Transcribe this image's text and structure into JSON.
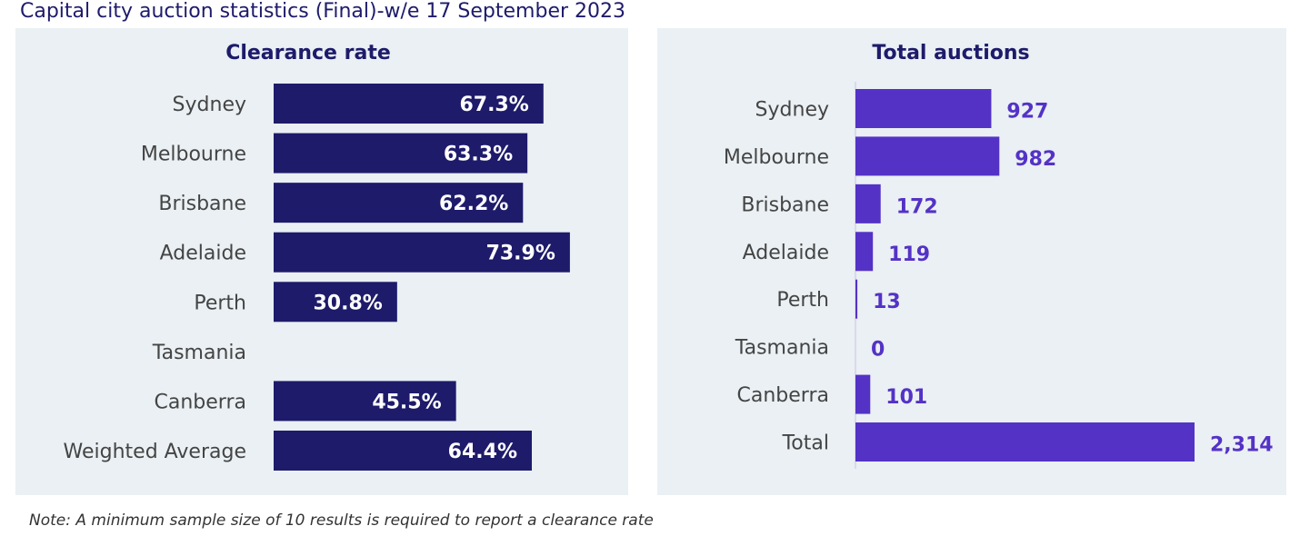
{
  "title": "Capital city auction statistics (Final)-w/e 17 September 2023",
  "note": "Note: A minimum sample size of 10 results is required to report a clearance rate",
  "colors": {
    "clearance_bar": "#1e1b6b",
    "auctions_bar": "#5432c6",
    "panel_bg": "#eaf0f3",
    "title_text": "#1e1b6b"
  },
  "chart_data": [
    {
      "type": "bar",
      "orientation": "horizontal",
      "title": "Clearance rate",
      "categories": [
        "Sydney",
        "Melbourne",
        "Brisbane",
        "Adelaide",
        "Perth",
        "Tasmania",
        "Canberra",
        "Weighted Average"
      ],
      "values": [
        67.3,
        63.3,
        62.2,
        73.9,
        30.8,
        null,
        45.5,
        64.4
      ],
      "data_labels": [
        "67.3%",
        "63.3%",
        "62.2%",
        "73.9%",
        "30.8%",
        "",
        "45.5%",
        "64.4%"
      ],
      "xlim": [
        0,
        100
      ],
      "grid": false,
      "label_position": "inside-end"
    },
    {
      "type": "bar",
      "orientation": "horizontal",
      "title": "Total auctions",
      "categories": [
        "Sydney",
        "Melbourne",
        "Brisbane",
        "Adelaide",
        "Perth",
        "Tasmania",
        "Canberra",
        "Total"
      ],
      "values": [
        927,
        982,
        172,
        119,
        13,
        0,
        101,
        2314
      ],
      "data_labels": [
        "927",
        "982",
        "172",
        "119",
        "13",
        "0",
        "101",
        "2,314"
      ],
      "xlim": [
        0,
        2314
      ],
      "grid": false,
      "label_position": "outside-end"
    }
  ]
}
